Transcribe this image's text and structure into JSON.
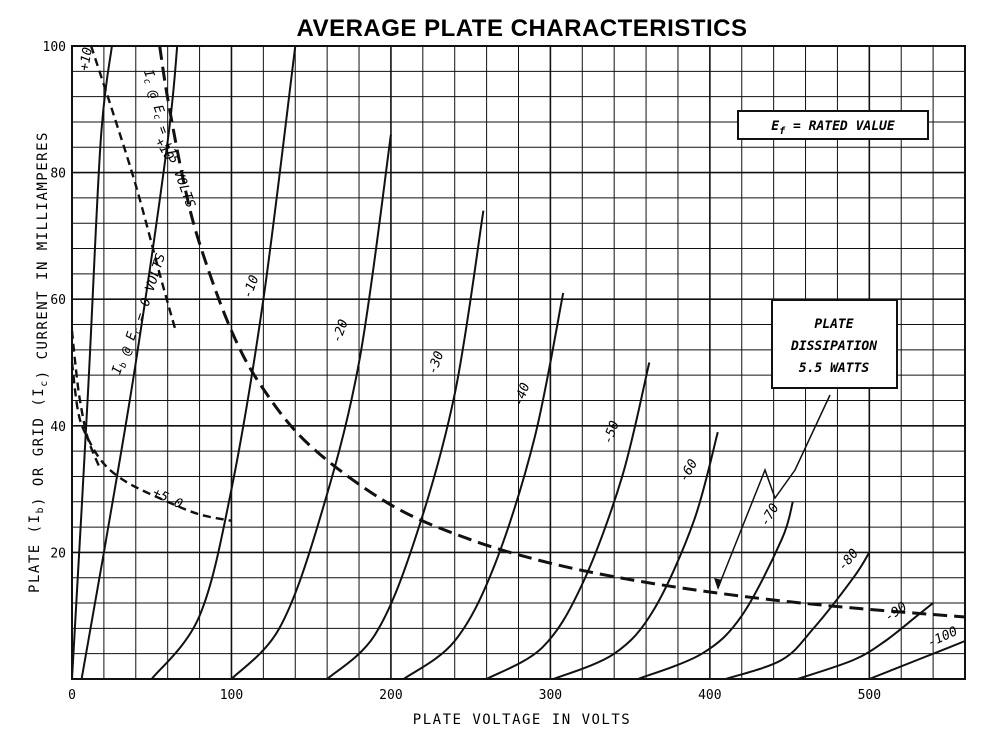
{
  "chart_data": {
    "type": "line",
    "title": "AVERAGE PLATE CHARACTERISTICS",
    "xlabel": "PLATE VOLTAGE IN VOLTS",
    "ylabel": "PLATE (I_b) OR GRID (I_c) CURRENT IN MILLIAMPERES",
    "xlim": [
      0,
      560
    ],
    "ylim": [
      0,
      100
    ],
    "x_ticks": [
      "0",
      "100",
      "200",
      "300",
      "400",
      "500"
    ],
    "y_ticks": [
      "20",
      "40",
      "60",
      "80",
      "100"
    ],
    "grid": true,
    "annotation_ef": "E_f = RATED VALUE",
    "dissipation_box": [
      "PLATE",
      "DISSIPATION",
      "5.5 WATTS"
    ],
    "plate_curves": [
      {
        "label": "+10",
        "x": [
          0,
          10,
          18,
          25
        ],
        "y": [
          0,
          45,
          85,
          100
        ]
      },
      {
        "label": "0",
        "x": [
          6,
          20,
          40,
          60,
          66
        ],
        "y": [
          0,
          20,
          50,
          85,
          100
        ]
      },
      {
        "label": "-10",
        "x": [
          50,
          80,
          100,
          120,
          140
        ],
        "y": [
          0,
          10,
          30,
          60,
          100
        ]
      },
      {
        "label": "-20",
        "x": [
          100,
          130,
          155,
          180,
          200
        ],
        "y": [
          0,
          8,
          25,
          50,
          86
        ]
      },
      {
        "label": "-30",
        "x": [
          160,
          190,
          215,
          240,
          258
        ],
        "y": [
          0,
          7,
          22,
          45,
          74
        ]
      },
      {
        "label": "-40",
        "x": [
          208,
          240,
          265,
          290,
          308
        ],
        "y": [
          0,
          6,
          18,
          38,
          61
        ]
      },
      {
        "label": "-50",
        "x": [
          260,
          295,
          320,
          345,
          362
        ],
        "y": [
          0,
          5,
          15,
          32,
          50
        ]
      },
      {
        "label": "-60",
        "x": [
          302,
          340,
          365,
          390,
          405
        ],
        "y": [
          0,
          4,
          11,
          25,
          39
        ]
      },
      {
        "label": "-70",
        "x": [
          355,
          395,
          420,
          445,
          452
        ],
        "y": [
          0,
          4,
          10,
          22,
          28
        ]
      },
      {
        "label": "-80",
        "x": [
          410,
          445,
          465,
          490,
          500
        ],
        "y": [
          0,
          3,
          8,
          16,
          20
        ]
      },
      {
        "label": "-90",
        "x": [
          455,
          490,
          510,
          530,
          540
        ],
        "y": [
          0,
          3,
          6,
          10,
          12
        ]
      },
      {
        "label": "-100",
        "x": [
          500,
          530,
          550,
          560
        ],
        "y": [
          0,
          3,
          5,
          6
        ]
      }
    ],
    "grid_curves": [
      {
        "label": "+10",
        "x": [
          0,
          2,
          5,
          10,
          18
        ],
        "y": [
          55,
          50,
          44,
          38,
          33
        ]
      },
      {
        "label": "+5.0",
        "x": [
          0,
          4,
          10,
          20,
          35,
          60,
          80,
          100
        ],
        "y": [
          50,
          42,
          38,
          34,
          31,
          28,
          26,
          25
        ]
      }
    ],
    "curve_family_labels": [
      "I_b @ E_c = 0 VOLTS",
      "I_c @ E_c = +15 VOLTS"
    ],
    "dissipation_curve": {
      "label": "PLATE DISSIPATION 5.5 WATTS",
      "x": [
        55,
        60,
        70,
        80,
        100,
        120,
        150,
        200,
        250,
        300,
        350,
        400,
        450,
        500,
        560
      ],
      "y": [
        100,
        91.7,
        78.6,
        68.8,
        55,
        45.8,
        36.7,
        27.5,
        22,
        18.3,
        15.7,
        13.75,
        12.2,
        11,
        9.8
      ]
    },
    "curve_labels_text": {
      "ib_zero": "I_b @ E_c = 0 VOLTS",
      "ic_15": "I_c @ E_c = +15 VOLTS"
    }
  }
}
